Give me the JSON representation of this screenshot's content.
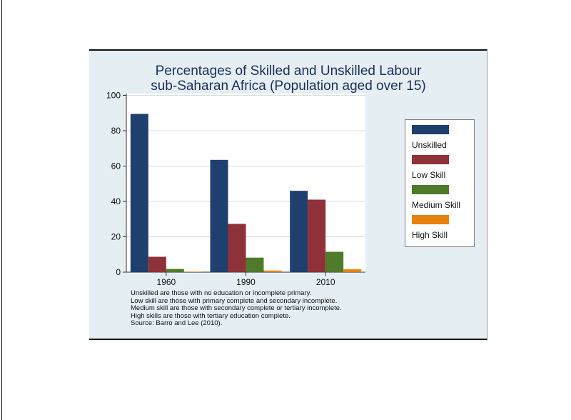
{
  "chart_data": {
    "type": "bar",
    "title": "Percentages of Skilled and Unskilled Labour",
    "subtitle": "sub-Saharan Africa (Population aged over 15)",
    "categories": [
      "1960",
      "1990",
      "2010"
    ],
    "series": [
      {
        "name": "Unskilled",
        "color": "#1f3f6e",
        "values": [
          89.5,
          63.5,
          46
        ]
      },
      {
        "name": "Low Skill",
        "color": "#8f3138",
        "values": [
          8.7,
          27.3,
          41
        ]
      },
      {
        "name": "Medium Skill",
        "color": "#4f7a2a",
        "values": [
          1.8,
          8.2,
          11.5
        ]
      },
      {
        "name": "High Skill",
        "color": "#e8820f",
        "values": [
          0.3,
          0.9,
          1.6
        ]
      }
    ],
    "yticks": [
      0,
      20,
      40,
      60,
      80,
      100
    ],
    "ylim": [
      0,
      101
    ],
    "xlabel": "",
    "ylabel": "",
    "grid": true,
    "legend_position": "right"
  },
  "notes": [
    "Unskilled are those with no education or incomplete primary.",
    "Low skill are those with primary complete and secondary incomplete.",
    "Medium skill are those with secondary complete or tertiary incomplete.",
    "High skills are those with tertiary education complete.",
    "Source: Barro and Lee (2010)."
  ]
}
